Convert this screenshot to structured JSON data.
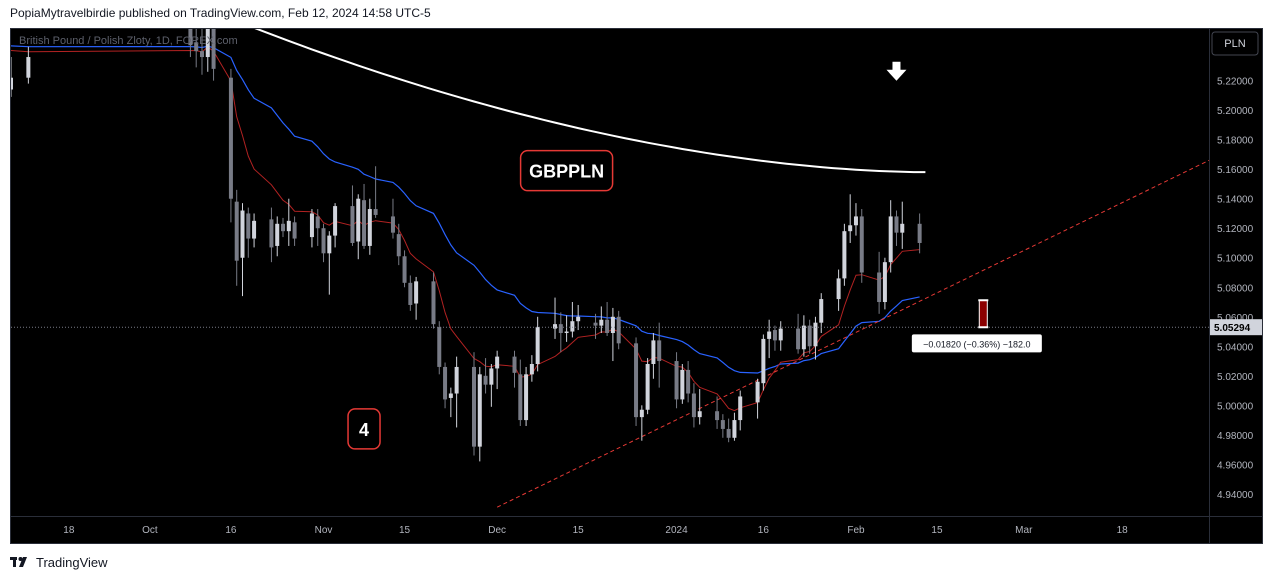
{
  "header": {
    "attribution": "PopiaMytravelbirdie published on TradingView.com, Feb 12, 2024 14:58 UTC-5"
  },
  "footer": {
    "brand": "TradingView",
    "logo_icon": "tradingview-logo-icon"
  },
  "colors": {
    "background": "#000000",
    "bull_candle": "#d1d4dc",
    "bear_candle": "#787b86",
    "ema_fast": "#b22222",
    "ma_mid": "#2962ff",
    "ma_slow": "#ffffff",
    "trendline": "#e53935",
    "label_border": "#e53935"
  },
  "chart_data": {
    "type": "candlestick",
    "symbol_label": "British Pound / Polish Zloty, 1D, FOREX.com",
    "currency_button": "PLN",
    "annotation_symbol": "GBPPLN",
    "annotation_count": "4",
    "down_arrow_icon": "arrow-down-icon",
    "price_scale": {
      "ylim": [
        4.925,
        5.255
      ],
      "ticks": [
        "5.22000",
        "5.20000",
        "5.18000",
        "5.16000",
        "5.14000",
        "5.12000",
        "5.10000",
        "5.08000",
        "5.06000",
        "5.04000",
        "5.02000",
        "5.00000",
        "4.98000",
        "4.96000",
        "4.94000"
      ],
      "last_price": "5.05294"
    },
    "time_axis": {
      "labels": [
        {
          "label": "18",
          "date": "2023-09-18"
        },
        {
          "label": "Oct",
          "date": "2023-10-02"
        },
        {
          "label": "16",
          "date": "2023-10-16"
        },
        {
          "label": "Nov",
          "date": "2023-11-01"
        },
        {
          "label": "15",
          "date": "2023-11-15"
        },
        {
          "label": "Dec",
          "date": "2023-12-01"
        },
        {
          "label": "15",
          "date": "2023-12-15"
        },
        {
          "label": "2024",
          "date": "2024-01-01"
        },
        {
          "label": "16",
          "date": "2024-01-16"
        },
        {
          "label": "Feb",
          "date": "2024-02-01"
        },
        {
          "label": "15",
          "date": "2024-02-15"
        },
        {
          "label": "Mar",
          "date": "2024-03-01"
        },
        {
          "label": "18",
          "date": "2024-03-18"
        }
      ],
      "xlim": [
        "2023-09-08",
        "2024-04-02"
      ]
    },
    "measure_label": "−0.01820 (−0.36%) −182.0",
    "measure_bar": {
      "date": "2024-02-23",
      "from": 5.0712,
      "to": 5.0529
    },
    "trendline": {
      "from": {
        "date": "2023-12-01",
        "price": 4.931
      },
      "to": {
        "date": "2024-04-02",
        "price": 5.166
      }
    },
    "candles": [
      {
        "date": "2023-09-08",
        "o": 5.214,
        "h": 5.236,
        "l": 5.209,
        "c": 5.222
      },
      {
        "date": "2023-09-11",
        "o": 5.222,
        "h": 5.243,
        "l": 5.218,
        "c": 5.236
      },
      {
        "date": "2023-10-09",
        "o": 5.258,
        "h": 5.265,
        "l": 5.236,
        "c": 5.244
      },
      {
        "date": "2023-10-10",
        "o": 5.246,
        "h": 5.26,
        "l": 5.229,
        "c": 5.24
      },
      {
        "date": "2023-10-11",
        "o": 5.24,
        "h": 5.262,
        "l": 5.224,
        "c": 5.236
      },
      {
        "date": "2023-10-12",
        "o": 5.236,
        "h": 5.26,
        "l": 5.226,
        "c": 5.256
      },
      {
        "date": "2023-10-13",
        "o": 5.256,
        "h": 5.262,
        "l": 5.22,
        "c": 5.228
      },
      {
        "date": "2023-10-16",
        "o": 5.222,
        "h": 5.228,
        "l": 5.124,
        "c": 5.14
      },
      {
        "date": "2023-10-17",
        "o": 5.138,
        "h": 5.146,
        "l": 5.081,
        "c": 5.098
      },
      {
        "date": "2023-10-18",
        "o": 5.1,
        "h": 5.137,
        "l": 5.074,
        "c": 5.132
      },
      {
        "date": "2023-10-19",
        "o": 5.13,
        "h": 5.134,
        "l": 5.1,
        "c": 5.113
      },
      {
        "date": "2023-10-20",
        "o": 5.113,
        "h": 5.13,
        "l": 5.107,
        "c": 5.125
      },
      {
        "date": "2023-10-23",
        "o": 5.126,
        "h": 5.134,
        "l": 5.097,
        "c": 5.107
      },
      {
        "date": "2023-10-24",
        "o": 5.108,
        "h": 5.128,
        "l": 5.101,
        "c": 5.123
      },
      {
        "date": "2023-10-25",
        "o": 5.123,
        "h": 5.127,
        "l": 5.114,
        "c": 5.118
      },
      {
        "date": "2023-10-26",
        "o": 5.118,
        "h": 5.14,
        "l": 5.108,
        "c": 5.125
      },
      {
        "date": "2023-10-27",
        "o": 5.124,
        "h": 5.128,
        "l": 5.108,
        "c": 5.113
      },
      {
        "date": "2023-10-30",
        "o": 5.114,
        "h": 5.133,
        "l": 5.107,
        "c": 5.13
      },
      {
        "date": "2023-10-31",
        "o": 5.128,
        "h": 5.133,
        "l": 5.108,
        "c": 5.12
      },
      {
        "date": "2023-11-01",
        "o": 5.12,
        "h": 5.123,
        "l": 5.097,
        "c": 5.103
      },
      {
        "date": "2023-11-02",
        "o": 5.103,
        "h": 5.118,
        "l": 5.075,
        "c": 5.115
      },
      {
        "date": "2023-11-03",
        "o": 5.115,
        "h": 5.137,
        "l": 5.107,
        "c": 5.135
      },
      {
        "date": "2023-11-06",
        "o": 5.135,
        "h": 5.149,
        "l": 5.108,
        "c": 5.11
      },
      {
        "date": "2023-11-07",
        "o": 5.111,
        "h": 5.143,
        "l": 5.099,
        "c": 5.14
      },
      {
        "date": "2023-11-08",
        "o": 5.139,
        "h": 5.15,
        "l": 5.106,
        "c": 5.108
      },
      {
        "date": "2023-11-09",
        "o": 5.108,
        "h": 5.14,
        "l": 5.102,
        "c": 5.133
      },
      {
        "date": "2023-11-10",
        "o": 5.133,
        "h": 5.162,
        "l": 5.127,
        "c": 5.129
      },
      {
        "date": "2023-11-13",
        "o": 5.128,
        "h": 5.14,
        "l": 5.113,
        "c": 5.117
      },
      {
        "date": "2023-11-14",
        "o": 5.116,
        "h": 5.123,
        "l": 5.095,
        "c": 5.101
      },
      {
        "date": "2023-11-15",
        "o": 5.101,
        "h": 5.105,
        "l": 5.08,
        "c": 5.083
      },
      {
        "date": "2023-11-16",
        "o": 5.083,
        "h": 5.088,
        "l": 5.064,
        "c": 5.068
      },
      {
        "date": "2023-11-17",
        "o": 5.069,
        "h": 5.087,
        "l": 5.058,
        "c": 5.084
      },
      {
        "date": "2023-11-20",
        "o": 5.084,
        "h": 5.09,
        "l": 5.052,
        "c": 5.055
      },
      {
        "date": "2023-11-21",
        "o": 5.053,
        "h": 5.057,
        "l": 5.021,
        "c": 5.026
      },
      {
        "date": "2023-11-22",
        "o": 5.026,
        "h": 5.029,
        "l": 4.998,
        "c": 5.004
      },
      {
        "date": "2023-11-23",
        "o": 5.005,
        "h": 5.012,
        "l": 4.992,
        "c": 5.008
      },
      {
        "date": "2023-11-24",
        "o": 5.008,
        "h": 5.033,
        "l": 4.985,
        "c": 5.026
      },
      {
        "date": "2023-11-27",
        "o": 5.026,
        "h": 5.036,
        "l": 4.966,
        "c": 4.972
      },
      {
        "date": "2023-11-28",
        "o": 4.972,
        "h": 5.026,
        "l": 4.962,
        "c": 5.021
      },
      {
        "date": "2023-11-29",
        "o": 5.02,
        "h": 5.032,
        "l": 5.008,
        "c": 5.014
      },
      {
        "date": "2023-11-30",
        "o": 5.014,
        "h": 5.028,
        "l": 4.999,
        "c": 5.025
      },
      {
        "date": "2023-12-01",
        "o": 5.025,
        "h": 5.037,
        "l": 5.011,
        "c": 5.033
      },
      {
        "date": "2023-12-04",
        "o": 5.033,
        "h": 5.037,
        "l": 5.012,
        "c": 5.022
      },
      {
        "date": "2023-12-05",
        "o": 5.021,
        "h": 5.031,
        "l": 4.986,
        "c": 4.99
      },
      {
        "date": "2023-12-06",
        "o": 4.99,
        "h": 5.026,
        "l": 4.986,
        "c": 5.021
      },
      {
        "date": "2023-12-07",
        "o": 5.021,
        "h": 5.034,
        "l": 5.016,
        "c": 5.028
      },
      {
        "date": "2023-12-08",
        "o": 5.028,
        "h": 5.06,
        "l": 5.023,
        "c": 5.053
      },
      {
        "date": "2023-12-11",
        "o": 5.052,
        "h": 5.073,
        "l": 5.045,
        "c": 5.055
      },
      {
        "date": "2023-12-12",
        "o": 5.055,
        "h": 5.063,
        "l": 5.036,
        "c": 5.049
      },
      {
        "date": "2023-12-13",
        "o": 5.049,
        "h": 5.061,
        "l": 5.043,
        "c": 5.05
      },
      {
        "date": "2023-12-14",
        "o": 5.05,
        "h": 5.07,
        "l": 5.046,
        "c": 5.057
      },
      {
        "date": "2023-12-15",
        "o": 5.057,
        "h": 5.068,
        "l": 5.051,
        "c": 5.06
      },
      {
        "date": "2023-12-18",
        "o": 5.056,
        "h": 5.062,
        "l": 5.045,
        "c": 5.054
      },
      {
        "date": "2023-12-19",
        "o": 5.054,
        "h": 5.067,
        "l": 5.049,
        "c": 5.058
      },
      {
        "date": "2023-12-20",
        "o": 5.058,
        "h": 5.07,
        "l": 5.047,
        "c": 5.049
      },
      {
        "date": "2023-12-21",
        "o": 5.049,
        "h": 5.066,
        "l": 5.03,
        "c": 5.06
      },
      {
        "date": "2023-12-22",
        "o": 5.06,
        "h": 5.064,
        "l": 5.038,
        "c": 5.042
      },
      {
        "date": "2023-12-25",
        "o": 5.042,
        "h": 5.046,
        "l": 4.986,
        "c": 4.992
      },
      {
        "date": "2023-12-26",
        "o": 4.992,
        "h": 5.0,
        "l": 4.976,
        "c": 4.997
      },
      {
        "date": "2023-12-27",
        "o": 4.997,
        "h": 5.032,
        "l": 4.994,
        "c": 5.028
      },
      {
        "date": "2023-12-28",
        "o": 5.028,
        "h": 5.049,
        "l": 5.018,
        "c": 5.044
      },
      {
        "date": "2023-12-29",
        "o": 5.044,
        "h": 5.056,
        "l": 5.012,
        "c": 5.03
      },
      {
        "date": "2024-01-01",
        "o": 5.03,
        "h": 5.036,
        "l": 4.998,
        "c": 5.004
      },
      {
        "date": "2024-01-02",
        "o": 5.004,
        "h": 5.028,
        "l": 5.001,
        "c": 5.024
      },
      {
        "date": "2024-01-03",
        "o": 5.024,
        "h": 5.03,
        "l": 5.002,
        "c": 5.008
      },
      {
        "date": "2024-01-04",
        "o": 5.008,
        "h": 5.015,
        "l": 4.985,
        "c": 4.992
      },
      {
        "date": "2024-01-05",
        "o": 4.992,
        "h": 5.011,
        "l": 4.987,
        "c": 4.996
      },
      {
        "date": "2024-01-08",
        "o": 4.996,
        "h": 5.006,
        "l": 4.984,
        "c": 4.99
      },
      {
        "date": "2024-01-09",
        "o": 4.99,
        "h": 4.994,
        "l": 4.978,
        "c": 4.984
      },
      {
        "date": "2024-01-10",
        "o": 4.984,
        "h": 4.991,
        "l": 4.975,
        "c": 4.978
      },
      {
        "date": "2024-01-11",
        "o": 4.978,
        "h": 4.995,
        "l": 4.976,
        "c": 4.99
      },
      {
        "date": "2024-01-12",
        "o": 4.99,
        "h": 5.01,
        "l": 4.983,
        "c": 5.006
      },
      {
        "date": "2024-01-15",
        "o": 5.002,
        "h": 5.018,
        "l": 4.991,
        "c": 5.016
      },
      {
        "date": "2024-01-16",
        "o": 5.015,
        "h": 5.048,
        "l": 5.01,
        "c": 5.045
      },
      {
        "date": "2024-01-17",
        "o": 5.045,
        "h": 5.058,
        "l": 5.032,
        "c": 5.05
      },
      {
        "date": "2024-01-18",
        "o": 5.051,
        "h": 5.054,
        "l": 5.037,
        "c": 5.044
      },
      {
        "date": "2024-01-19",
        "o": 5.044,
        "h": 5.057,
        "l": 5.037,
        "c": 5.052
      },
      {
        "date": "2024-01-22",
        "o": 5.052,
        "h": 5.062,
        "l": 5.035,
        "c": 5.038
      },
      {
        "date": "2024-01-23",
        "o": 5.038,
        "h": 5.061,
        "l": 5.033,
        "c": 5.054
      },
      {
        "date": "2024-01-24",
        "o": 5.054,
        "h": 5.058,
        "l": 5.035,
        "c": 5.04
      },
      {
        "date": "2024-01-25",
        "o": 5.04,
        "h": 5.06,
        "l": 5.031,
        "c": 5.056
      },
      {
        "date": "2024-01-26",
        "o": 5.056,
        "h": 5.076,
        "l": 5.049,
        "c": 5.072
      },
      {
        "date": "2024-01-29",
        "o": 5.072,
        "h": 5.092,
        "l": 5.064,
        "c": 5.086
      },
      {
        "date": "2024-01-30",
        "o": 5.086,
        "h": 5.123,
        "l": 5.081,
        "c": 5.118
      },
      {
        "date": "2024-01-31",
        "o": 5.118,
        "h": 5.143,
        "l": 5.11,
        "c": 5.122
      },
      {
        "date": "2024-02-01",
        "o": 5.122,
        "h": 5.137,
        "l": 5.115,
        "c": 5.128
      },
      {
        "date": "2024-02-02",
        "o": 5.128,
        "h": 5.133,
        "l": 5.083,
        "c": 5.09
      },
      {
        "date": "2024-02-05",
        "o": 5.09,
        "h": 5.104,
        "l": 5.062,
        "c": 5.07
      },
      {
        "date": "2024-02-06",
        "o": 5.07,
        "h": 5.1,
        "l": 5.065,
        "c": 5.097
      },
      {
        "date": "2024-02-07",
        "o": 5.097,
        "h": 5.139,
        "l": 5.09,
        "c": 5.128
      },
      {
        "date": "2024-02-08",
        "o": 5.128,
        "h": 5.132,
        "l": 5.108,
        "c": 5.117
      },
      {
        "date": "2024-02-09",
        "o": 5.117,
        "h": 5.138,
        "l": 5.106,
        "c": 5.123
      },
      {
        "date": "2024-02-12",
        "o": 5.123,
        "h": 5.13,
        "l": 5.103,
        "c": 5.11
      }
    ]
  }
}
